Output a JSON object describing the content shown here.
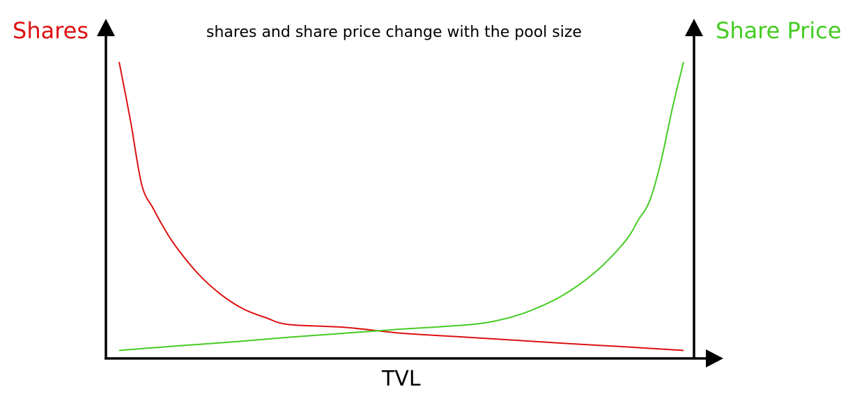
{
  "chart_data": {
    "type": "line",
    "title": "shares and share price change with the pool size",
    "xlabel": "TVL",
    "ylabel_left": "Shares",
    "ylabel_right": "Share Price",
    "xlim": [
      0,
      100
    ],
    "ylim": [
      0,
      100
    ],
    "grid": false,
    "legend": "none",
    "series": [
      {
        "name": "Shares",
        "axis": "left",
        "color": "#dd1111",
        "x": [
          0,
          2,
          4,
          6,
          8,
          10,
          14,
          18,
          22,
          26,
          30,
          40,
          50,
          60,
          70,
          80,
          90,
          100
        ],
        "y": [
          100,
          80,
          58,
          50,
          43,
          37,
          27.5,
          20.5,
          15.5,
          12.5,
          10.2,
          9.2,
          7.2,
          6.0,
          4.8,
          3.6,
          2.5,
          1.3
        ]
      },
      {
        "name": "Share Price",
        "axis": "right",
        "color": "#44cc22",
        "x": [
          0,
          10,
          20,
          30,
          40,
          50,
          60,
          65,
          70,
          74,
          78,
          82,
          86,
          90,
          92,
          94,
          96,
          98,
          100
        ],
        "y": [
          1.3,
          2.8,
          4.2,
          5.8,
          7.2,
          8.6,
          9.8,
          10.8,
          13.0,
          15.8,
          19.5,
          24.5,
          31.0,
          39.5,
          46.0,
          52.5,
          66.0,
          84.0,
          100
        ]
      }
    ]
  }
}
